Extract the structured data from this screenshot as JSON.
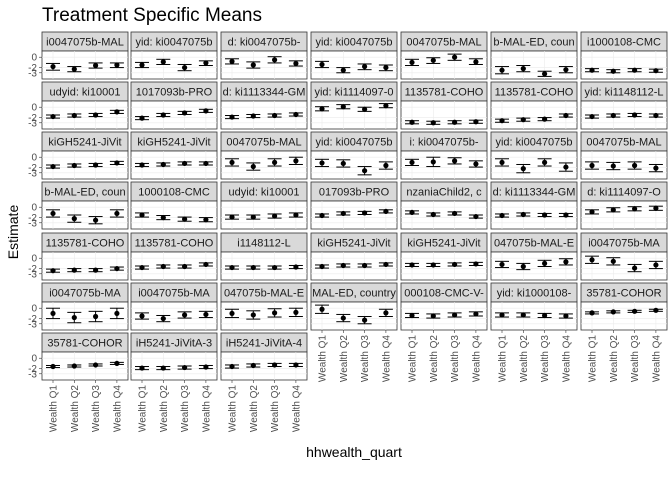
{
  "chart_data": {
    "type": "scatter",
    "title": "Treatment Specific Means",
    "xlabel": "hhwealth_quart",
    "ylabel": "Estimate",
    "categories": [
      "Wealth Q1",
      "Wealth Q2",
      "Wealth Q3",
      "Wealth Q4"
    ],
    "yticks": [
      0,
      -2,
      -3
    ],
    "ytick_labels": [
      "0",
      "-2",
      "-3"
    ],
    "ylim": [
      -4.2,
      1.2
    ],
    "grid": true,
    "facets": [
      {
        "strip": "i0047075b-MAL",
        "estimates": [
          -1.8,
          -2.3,
          -1.6,
          -1.5
        ],
        "lower": [
          -2.5,
          -2.8,
          -2.1,
          -2.0
        ],
        "upper": [
          -1.2,
          -1.8,
          -1.1,
          -1.1
        ]
      },
      {
        "strip": "yid: ki0047075b",
        "estimates": [
          -1.5,
          -0.9,
          -2.0,
          -1.1
        ],
        "lower": [
          -2.0,
          -1.4,
          -2.6,
          -1.6
        ],
        "upper": [
          -1.0,
          -0.4,
          -1.4,
          -0.7
        ]
      },
      {
        "strip": "d: ki0047075b-",
        "estimates": [
          -0.8,
          -1.5,
          -0.5,
          -1.2
        ],
        "lower": [
          -1.3,
          -2.1,
          -1.1,
          -1.7
        ],
        "upper": [
          -0.3,
          -0.9,
          0.1,
          -0.7
        ]
      },
      {
        "strip": "yid: ki0047075b",
        "estimates": [
          -1.4,
          -2.5,
          -1.8,
          -2.0
        ],
        "lower": [
          -2.0,
          -3.0,
          -2.4,
          -2.6
        ],
        "upper": [
          -0.8,
          -2.0,
          -1.3,
          -1.5
        ]
      },
      {
        "strip": "0047075b-MAL",
        "estimates": [
          -1.0,
          -0.6,
          0.0,
          -0.9
        ],
        "lower": [
          -1.6,
          -1.2,
          -0.6,
          -1.4
        ],
        "upper": [
          -0.4,
          -0.1,
          0.6,
          -0.3
        ]
      },
      {
        "strip": "b-MAL-ED, coun",
        "estimates": [
          -2.5,
          -2.2,
          -3.2,
          -2.4
        ],
        "lower": [
          -3.2,
          -2.8,
          -3.7,
          -3.0
        ],
        "upper": [
          -1.8,
          -1.6,
          -2.7,
          -1.8
        ]
      },
      {
        "strip": "i1000108-CMC",
        "estimates": [
          -2.5,
          -2.7,
          -2.5,
          -2.6
        ],
        "lower": [
          -2.8,
          -3.0,
          -2.8,
          -2.9
        ],
        "upper": [
          -2.2,
          -2.4,
          -2.2,
          -2.3
        ]
      },
      {
        "strip": "udyid: ki10001",
        "estimates": [
          -1.8,
          -1.6,
          -1.5,
          -0.9
        ],
        "lower": [
          -2.1,
          -1.9,
          -1.8,
          -1.2
        ],
        "upper": [
          -1.5,
          -1.3,
          -1.2,
          -0.6
        ]
      },
      {
        "strip": "1017093b-PRO",
        "estimates": [
          -2.1,
          -1.5,
          -1.1,
          -0.7
        ],
        "lower": [
          -2.4,
          -1.8,
          -1.4,
          -1.0
        ],
        "upper": [
          -1.8,
          -1.2,
          -0.8,
          -0.4
        ]
      },
      {
        "strip": "d: ki1113344-GM",
        "estimates": [
          -1.9,
          -1.7,
          -1.6,
          -1.4
        ],
        "lower": [
          -2.2,
          -2.0,
          -1.9,
          -1.7
        ],
        "upper": [
          -1.6,
          -1.4,
          -1.3,
          -1.1
        ]
      },
      {
        "strip": "yid: ki1114097-0",
        "estimates": [
          -0.3,
          0.1,
          -0.4,
          0.3
        ],
        "lower": [
          -0.7,
          -0.3,
          -0.8,
          -0.1
        ],
        "upper": [
          0.1,
          0.5,
          0.0,
          0.7
        ]
      },
      {
        "strip": "1135781-COHO",
        "estimates": [
          -2.9,
          -3.0,
          -2.9,
          -2.8
        ],
        "lower": [
          -3.2,
          -3.3,
          -3.2,
          -3.1
        ],
        "upper": [
          -2.6,
          -2.7,
          -2.6,
          -2.5
        ]
      },
      {
        "strip": "1135781-COHO",
        "estimates": [
          -2.6,
          -2.4,
          -2.3,
          -1.6
        ],
        "lower": [
          -2.9,
          -2.7,
          -2.6,
          -1.9
        ],
        "upper": [
          -2.3,
          -2.1,
          -2.0,
          -1.3
        ]
      },
      {
        "strip": "yid: ki1148112-L",
        "estimates": [
          -1.8,
          -1.6,
          -1.5,
          -1.6
        ],
        "lower": [
          -2.1,
          -1.9,
          -1.8,
          -1.9
        ],
        "upper": [
          -1.5,
          -1.3,
          -1.2,
          -1.3
        ]
      },
      {
        "strip": "kiGH5241-JiVit",
        "estimates": [
          -1.8,
          -1.6,
          -1.5,
          -1.1
        ],
        "lower": [
          -2.1,
          -1.9,
          -1.8,
          -1.4
        ],
        "upper": [
          -1.5,
          -1.3,
          -1.2,
          -0.8
        ]
      },
      {
        "strip": "kiGH5241-JiVit",
        "estimates": [
          -1.5,
          -1.4,
          -1.2,
          -1.2
        ],
        "lower": [
          -1.8,
          -1.7,
          -1.5,
          -1.5
        ],
        "upper": [
          -1.2,
          -1.1,
          -0.9,
          -0.9
        ]
      },
      {
        "strip": "0047075b-MAL",
        "estimates": [
          -1.0,
          -1.8,
          -1.0,
          -0.7
        ],
        "lower": [
          -1.7,
          -2.5,
          -1.7,
          -1.4
        ],
        "upper": [
          -0.3,
          -1.1,
          -0.3,
          0.0
        ]
      },
      {
        "strip": "yid: ki0047075b",
        "estimates": [
          -1.1,
          -1.2,
          -2.6,
          -1.6
        ],
        "lower": [
          -1.8,
          -1.9,
          -3.4,
          -2.3
        ],
        "upper": [
          -0.4,
          -0.5,
          -1.8,
          -0.9
        ]
      },
      {
        "strip": "i: ki0047075b-",
        "estimates": [
          -1.0,
          -0.9,
          -0.7,
          -1.3
        ],
        "lower": [
          -1.6,
          -1.8,
          -1.3,
          -1.9
        ],
        "upper": [
          -0.4,
          0.0,
          -0.1,
          -0.7
        ]
      },
      {
        "strip": "yid: ki0047075b",
        "estimates": [
          -1.0,
          -2.2,
          -1.0,
          -1.9
        ],
        "lower": [
          -1.7,
          -3.0,
          -1.7,
          -2.7
        ],
        "upper": [
          -0.3,
          -1.4,
          -0.3,
          -1.1
        ]
      },
      {
        "strip": "0047075b-MAL",
        "estimates": [
          -1.6,
          -1.7,
          -1.6,
          -2.1
        ],
        "lower": [
          -2.3,
          -2.4,
          -2.3,
          -2.8
        ],
        "upper": [
          -0.9,
          -1.0,
          -0.9,
          -1.4
        ]
      },
      {
        "strip": "b-MAL-ED, coun",
        "estimates": [
          -1.2,
          -2.2,
          -2.5,
          -1.2
        ],
        "lower": [
          -1.9,
          -2.9,
          -3.2,
          -1.9
        ],
        "upper": [
          -0.5,
          -1.5,
          -1.8,
          -0.5
        ]
      },
      {
        "strip": "1000108-CMC",
        "estimates": [
          -1.5,
          -2.0,
          -2.3,
          -2.4
        ],
        "lower": [
          -1.9,
          -2.4,
          -2.7,
          -2.8
        ],
        "upper": [
          -1.1,
          -1.6,
          -1.9,
          -2.0
        ]
      },
      {
        "strip": "udyid: ki10001",
        "estimates": [
          -1.9,
          -1.9,
          -1.7,
          -1.5
        ],
        "lower": [
          -2.3,
          -2.3,
          -2.1,
          -1.9
        ],
        "upper": [
          -1.5,
          -1.5,
          -1.3,
          -1.1
        ]
      },
      {
        "strip": "017093b-PRO",
        "estimates": [
          -1.6,
          -1.2,
          -1.1,
          -0.8
        ],
        "lower": [
          -1.9,
          -1.5,
          -1.4,
          -1.1
        ],
        "upper": [
          -1.3,
          -0.9,
          -0.8,
          -0.5
        ]
      },
      {
        "strip": "nzaniaChild2, c",
        "estimates": [
          -1.0,
          -1.4,
          -1.2,
          -1.8
        ],
        "lower": [
          -1.3,
          -1.7,
          -1.5,
          -2.1
        ],
        "upper": [
          -0.7,
          -1.1,
          -0.9,
          -1.5
        ]
      },
      {
        "strip": "d: ki1113344-GM",
        "estimates": [
          -1.6,
          -1.4,
          -1.5,
          -1.5
        ],
        "lower": [
          -1.9,
          -1.7,
          -1.8,
          -1.8
        ],
        "upper": [
          -1.3,
          -1.1,
          -1.2,
          -1.2
        ]
      },
      {
        "strip": "d: ki1114097-O",
        "estimates": [
          -0.9,
          -0.5,
          -0.3,
          -0.2
        ],
        "lower": [
          -1.3,
          -0.9,
          -0.7,
          -0.6
        ],
        "upper": [
          -0.5,
          -0.1,
          0.1,
          0.2
        ]
      },
      {
        "strip": "1135781-COHO",
        "estimates": [
          -2.4,
          -2.3,
          -2.3,
          -2.0
        ],
        "lower": [
          -2.7,
          -2.6,
          -2.6,
          -2.3
        ],
        "upper": [
          -2.1,
          -2.0,
          -2.0,
          -1.7
        ]
      },
      {
        "strip": "1135781-COHO",
        "estimates": [
          -1.8,
          -1.6,
          -1.6,
          -1.2
        ],
        "lower": [
          -2.1,
          -1.9,
          -1.9,
          -1.5
        ],
        "upper": [
          -1.5,
          -1.3,
          -1.3,
          -0.9
        ]
      },
      {
        "strip": "i1148112-L",
        "estimates": [
          -1.8,
          -1.8,
          -1.8,
          -1.7
        ],
        "lower": [
          -2.1,
          -2.1,
          -2.1,
          -2.0
        ],
        "upper": [
          -1.5,
          -1.5,
          -1.5,
          -1.4
        ]
      },
      {
        "strip": "kiGH5241-JiVit",
        "estimates": [
          -1.6,
          -1.4,
          -1.4,
          -1.2
        ],
        "lower": [
          -1.9,
          -1.7,
          -1.7,
          -1.5
        ],
        "upper": [
          -1.3,
          -1.1,
          -1.1,
          -0.9
        ]
      },
      {
        "strip": "kiGH5241-JiVit",
        "estimates": [
          -1.3,
          -1.3,
          -1.2,
          -1.1
        ],
        "lower": [
          -1.6,
          -1.6,
          -1.5,
          -1.4
        ],
        "upper": [
          -1.0,
          -1.0,
          -0.9,
          -0.8
        ]
      },
      {
        "strip": "047075b-MAL-E",
        "estimates": [
          -1.2,
          -1.6,
          -1.0,
          -0.7
        ],
        "lower": [
          -1.8,
          -2.2,
          -1.6,
          -1.3
        ],
        "upper": [
          -0.6,
          -1.0,
          -0.4,
          -0.1
        ]
      },
      {
        "strip": "i0047075b-MA",
        "estimates": [
          -0.3,
          -0.6,
          -1.9,
          -1.3
        ],
        "lower": [
          -1.0,
          -1.3,
          -2.6,
          -2.0
        ],
        "upper": [
          0.4,
          0.1,
          -1.2,
          -0.6
        ]
      },
      {
        "strip": "i0047075b-MA",
        "estimates": [
          -1.0,
          -1.8,
          -1.6,
          -1.0
        ],
        "lower": [
          -2.0,
          -2.8,
          -2.6,
          -2.0
        ],
        "upper": [
          0.0,
          -0.8,
          -0.6,
          0.0
        ]
      },
      {
        "strip": "i0047075b-MA",
        "estimates": [
          -1.5,
          -2.0,
          -1.3,
          -1.2
        ],
        "lower": [
          -2.1,
          -2.6,
          -1.9,
          -1.8
        ],
        "upper": [
          -0.9,
          -1.4,
          -0.7,
          -0.6
        ]
      },
      {
        "strip": "047075b-MAL-E",
        "estimates": [
          -1.0,
          -1.3,
          -0.9,
          -0.8
        ],
        "lower": [
          -1.8,
          -2.1,
          -1.7,
          -1.6
        ],
        "upper": [
          -0.2,
          -0.5,
          -0.1,
          0.0
        ]
      },
      {
        "strip": "MAL-ED, country",
        "estimates": [
          -0.2,
          -1.9,
          -2.3,
          -0.9
        ],
        "lower": [
          -1.0,
          -2.6,
          -3.0,
          -1.6
        ],
        "upper": [
          0.6,
          -1.2,
          -1.6,
          -0.2
        ]
      },
      {
        "strip": "000108-CMC-V-",
        "estimates": [
          -1.4,
          -1.5,
          -1.3,
          -1.1
        ],
        "lower": [
          -1.8,
          -1.9,
          -1.7,
          -1.5
        ],
        "upper": [
          -1.0,
          -1.1,
          -0.9,
          -0.7
        ]
      },
      {
        "strip": "yid: ki1000108-",
        "estimates": [
          -1.3,
          -1.3,
          -1.4,
          -1.5
        ],
        "lower": [
          -1.7,
          -1.7,
          -1.8,
          -1.9
        ],
        "upper": [
          -0.9,
          -0.9,
          -1.0,
          -1.1
        ]
      },
      {
        "strip": "35781-COHOR",
        "estimates": [
          -0.9,
          -0.7,
          -0.6,
          -0.4
        ],
        "lower": [
          -1.1,
          -0.9,
          -0.8,
          -0.6
        ],
        "upper": [
          -0.7,
          -0.5,
          -0.4,
          -0.2
        ]
      },
      {
        "strip": "35781-COHOR",
        "estimates": [
          -1.6,
          -1.5,
          -1.3,
          -1.0
        ],
        "lower": [
          -1.8,
          -1.7,
          -1.5,
          -1.2
        ],
        "upper": [
          -1.4,
          -1.3,
          -1.1,
          -0.8
        ]
      },
      {
        "strip": "iH5241-JiVitA-3",
        "estimates": [
          -1.9,
          -1.9,
          -1.8,
          -1.7
        ],
        "lower": [
          -2.2,
          -2.2,
          -2.1,
          -2.0
        ],
        "upper": [
          -1.6,
          -1.6,
          -1.5,
          -1.4
        ]
      },
      {
        "strip": "iH5241-JiVitA-4",
        "estimates": [
          -1.6,
          -1.4,
          -1.3,
          -1.3
        ],
        "lower": [
          -1.9,
          -1.7,
          -1.6,
          -1.6
        ],
        "upper": [
          -1.3,
          -1.1,
          -1.0,
          -1.0
        ]
      }
    ]
  }
}
